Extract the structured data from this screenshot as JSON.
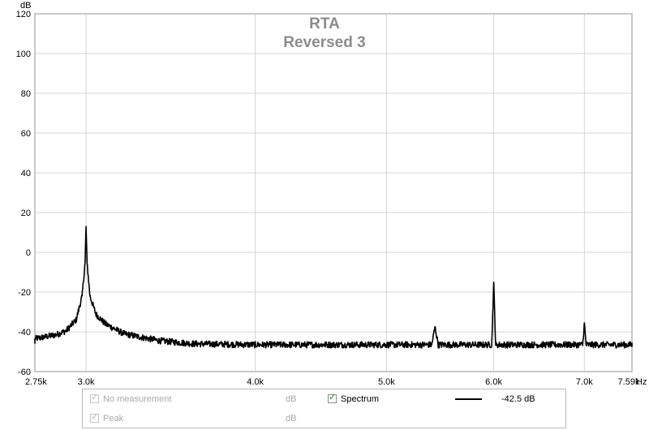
{
  "chart_data": {
    "type": "line",
    "title": "RTA",
    "subtitle": "Reversed 3",
    "ylabel": "dB",
    "xunit": "Hz",
    "xscale": "log",
    "xlim": [
      2750,
      7590
    ],
    "ylim": [
      -60,
      120
    ],
    "grid": true,
    "x_ticks": [
      2750,
      3000,
      4000,
      5000,
      6000,
      7000,
      7590
    ],
    "x_tick_labels": [
      "2.75k",
      "3.0k",
      "4.0k",
      "5.0k",
      "6.0k",
      "7.0k",
      "7.59k"
    ],
    "y_ticks": [
      120,
      100,
      80,
      60,
      40,
      20,
      0,
      -20,
      -40,
      -60
    ],
    "y_tick_labels": [
      "120",
      "100",
      "80",
      "60",
      "40",
      "20",
      "0",
      "-20",
      "-40",
      "-60"
    ],
    "series": [
      {
        "name": "Spectrum",
        "color": "#000000",
        "noise_floor_db": -46.5,
        "points": [
          [
            2750,
            -43.5
          ],
          [
            2800,
            -42.5
          ],
          [
            2850,
            -41.5
          ],
          [
            2900,
            -39.5
          ],
          [
            2950,
            -34
          ],
          [
            2980,
            -22
          ],
          [
            2995,
            -5
          ],
          [
            3000,
            13
          ],
          [
            3005,
            -5
          ],
          [
            3020,
            -22
          ],
          [
            3050,
            -31
          ],
          [
            3100,
            -36
          ],
          [
            3200,
            -41
          ],
          [
            3400,
            -44.5
          ],
          [
            3600,
            -46
          ],
          [
            4000,
            -46.5
          ],
          [
            4500,
            -46.5
          ],
          [
            5000,
            -46.5
          ],
          [
            5400,
            -46.5
          ],
          [
            5430,
            -37.5
          ],
          [
            5460,
            -46.5
          ],
          [
            5980,
            -46.5
          ],
          [
            6000,
            -15
          ],
          [
            6020,
            -46.5
          ],
          [
            6980,
            -46.5
          ],
          [
            7000,
            -35.5
          ],
          [
            7020,
            -46.5
          ],
          [
            7590,
            -46.5
          ]
        ]
      }
    ]
  },
  "legend": {
    "rows": [
      {
        "label": "No measurement",
        "unit": "dB",
        "checked": true,
        "enabled": false
      },
      {
        "label": "Peak",
        "unit": "dB",
        "checked": true,
        "enabled": false
      }
    ],
    "spectrum": {
      "label": "Spectrum",
      "value": "-42.5 dB",
      "checked": true
    }
  },
  "colors": {
    "grid": "#d4d4d4",
    "frame": "#c8c8c8",
    "trace": "#000000",
    "title": "#8c8c8c",
    "check_active": "#1a7f1a"
  },
  "check_glyph": "✓"
}
